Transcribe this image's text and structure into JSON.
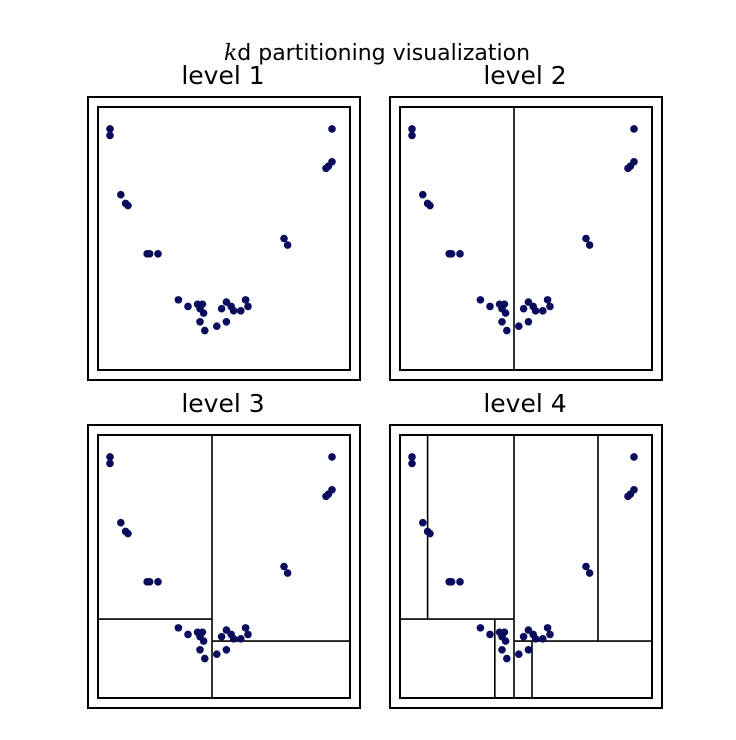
{
  "figure": {
    "title_prefix": "k",
    "title_rest": "d partitioning visualization"
  },
  "chart_data": [
    {
      "type": "scatter",
      "title": "level 1",
      "xlim": [
        -1.05,
        1.05
      ],
      "ylim": [
        -0.1,
        1.1
      ],
      "grid": false,
      "points": [
        [
          -0.95,
          1.0
        ],
        [
          -0.95,
          0.97
        ],
        [
          -0.86,
          0.7
        ],
        [
          -0.82,
          0.66
        ],
        [
          -0.8,
          0.65
        ],
        [
          -0.64,
          0.43
        ],
        [
          -0.62,
          0.43
        ],
        [
          -0.55,
          0.43
        ],
        [
          -0.38,
          0.22
        ],
        [
          -0.3,
          0.19
        ],
        [
          -0.22,
          0.2
        ],
        [
          -0.18,
          0.2
        ],
        [
          -0.2,
          0.18
        ],
        [
          -0.17,
          0.16
        ],
        [
          -0.2,
          0.12
        ],
        [
          -0.16,
          0.08
        ],
        [
          -0.06,
          0.1
        ],
        [
          0.02,
          0.12
        ],
        [
          -0.02,
          0.18
        ],
        [
          0.02,
          0.21
        ],
        [
          0.06,
          0.19
        ],
        [
          0.08,
          0.17
        ],
        [
          0.14,
          0.17
        ],
        [
          0.18,
          0.22
        ],
        [
          0.2,
          0.19
        ],
        [
          0.5,
          0.5
        ],
        [
          0.53,
          0.47
        ],
        [
          0.85,
          0.82
        ],
        [
          0.87,
          0.83
        ],
        [
          0.9,
          0.85
        ],
        [
          0.9,
          1.0
        ]
      ],
      "partitions": []
    },
    {
      "type": "scatter",
      "title": "level 2",
      "xlim": [
        -1.05,
        1.05
      ],
      "ylim": [
        -0.1,
        1.1
      ],
      "grid": false,
      "points": [
        [
          -0.95,
          1.0
        ],
        [
          -0.95,
          0.97
        ],
        [
          -0.86,
          0.7
        ],
        [
          -0.82,
          0.66
        ],
        [
          -0.8,
          0.65
        ],
        [
          -0.64,
          0.43
        ],
        [
          -0.62,
          0.43
        ],
        [
          -0.55,
          0.43
        ],
        [
          -0.38,
          0.22
        ],
        [
          -0.3,
          0.19
        ],
        [
          -0.22,
          0.2
        ],
        [
          -0.18,
          0.2
        ],
        [
          -0.2,
          0.18
        ],
        [
          -0.17,
          0.16
        ],
        [
          -0.2,
          0.12
        ],
        [
          -0.16,
          0.08
        ],
        [
          -0.06,
          0.1
        ],
        [
          0.02,
          0.12
        ],
        [
          -0.02,
          0.18
        ],
        [
          0.02,
          0.21
        ],
        [
          0.06,
          0.19
        ],
        [
          0.08,
          0.17
        ],
        [
          0.14,
          0.17
        ],
        [
          0.18,
          0.22
        ],
        [
          0.2,
          0.19
        ],
        [
          0.5,
          0.5
        ],
        [
          0.53,
          0.47
        ],
        [
          0.85,
          0.82
        ],
        [
          0.87,
          0.83
        ],
        [
          0.9,
          0.85
        ],
        [
          0.9,
          1.0
        ]
      ],
      "partitions": [
        {
          "axis": "x",
          "value": -0.1,
          "from": -0.1,
          "to": 1.1
        }
      ]
    },
    {
      "type": "scatter",
      "title": "level 3",
      "xlim": [
        -1.05,
        1.05
      ],
      "ylim": [
        -0.1,
        1.1
      ],
      "grid": false,
      "points": [
        [
          -0.95,
          1.0
        ],
        [
          -0.95,
          0.97
        ],
        [
          -0.86,
          0.7
        ],
        [
          -0.82,
          0.66
        ],
        [
          -0.8,
          0.65
        ],
        [
          -0.64,
          0.43
        ],
        [
          -0.62,
          0.43
        ],
        [
          -0.55,
          0.43
        ],
        [
          -0.38,
          0.22
        ],
        [
          -0.3,
          0.19
        ],
        [
          -0.22,
          0.2
        ],
        [
          -0.18,
          0.2
        ],
        [
          -0.2,
          0.18
        ],
        [
          -0.17,
          0.16
        ],
        [
          -0.2,
          0.12
        ],
        [
          -0.16,
          0.08
        ],
        [
          -0.06,
          0.1
        ],
        [
          0.02,
          0.12
        ],
        [
          -0.02,
          0.18
        ],
        [
          0.02,
          0.21
        ],
        [
          0.06,
          0.19
        ],
        [
          0.08,
          0.17
        ],
        [
          0.14,
          0.17
        ],
        [
          0.18,
          0.22
        ],
        [
          0.2,
          0.19
        ],
        [
          0.5,
          0.5
        ],
        [
          0.53,
          0.47
        ],
        [
          0.85,
          0.82
        ],
        [
          0.87,
          0.83
        ],
        [
          0.9,
          0.85
        ],
        [
          0.9,
          1.0
        ]
      ],
      "partitions": [
        {
          "axis": "x",
          "value": -0.1,
          "from": -0.1,
          "to": 1.1
        },
        {
          "axis": "y",
          "value": 0.26,
          "from": -1.05,
          "to": -0.1
        },
        {
          "axis": "y",
          "value": 0.16,
          "from": -0.1,
          "to": 1.05
        }
      ]
    },
    {
      "type": "scatter",
      "title": "level 4",
      "xlim": [
        -1.05,
        1.05
      ],
      "ylim": [
        -0.1,
        1.1
      ],
      "grid": false,
      "points": [
        [
          -0.95,
          1.0
        ],
        [
          -0.95,
          0.97
        ],
        [
          -0.86,
          0.7
        ],
        [
          -0.82,
          0.66
        ],
        [
          -0.8,
          0.65
        ],
        [
          -0.64,
          0.43
        ],
        [
          -0.62,
          0.43
        ],
        [
          -0.55,
          0.43
        ],
        [
          -0.38,
          0.22
        ],
        [
          -0.3,
          0.19
        ],
        [
          -0.22,
          0.2
        ],
        [
          -0.18,
          0.2
        ],
        [
          -0.2,
          0.18
        ],
        [
          -0.17,
          0.16
        ],
        [
          -0.2,
          0.12
        ],
        [
          -0.16,
          0.08
        ],
        [
          -0.06,
          0.1
        ],
        [
          0.02,
          0.12
        ],
        [
          -0.02,
          0.18
        ],
        [
          0.02,
          0.21
        ],
        [
          0.06,
          0.19
        ],
        [
          0.08,
          0.17
        ],
        [
          0.14,
          0.17
        ],
        [
          0.18,
          0.22
        ],
        [
          0.2,
          0.19
        ],
        [
          0.5,
          0.5
        ],
        [
          0.53,
          0.47
        ],
        [
          0.85,
          0.82
        ],
        [
          0.87,
          0.83
        ],
        [
          0.9,
          0.85
        ],
        [
          0.9,
          1.0
        ]
      ],
      "partitions": [
        {
          "axis": "x",
          "value": -0.1,
          "from": -0.1,
          "to": 1.1
        },
        {
          "axis": "y",
          "value": 0.26,
          "from": -1.05,
          "to": -0.1
        },
        {
          "axis": "y",
          "value": 0.16,
          "from": -0.1,
          "to": 1.05
        },
        {
          "axis": "x",
          "value": -0.82,
          "from": 0.26,
          "to": 1.1
        },
        {
          "axis": "x",
          "value": -0.26,
          "from": -0.1,
          "to": 0.26
        },
        {
          "axis": "x",
          "value": 0.6,
          "from": 0.16,
          "to": 1.1
        },
        {
          "axis": "x",
          "value": 0.05,
          "from": -0.1,
          "to": 0.16
        }
      ]
    }
  ]
}
